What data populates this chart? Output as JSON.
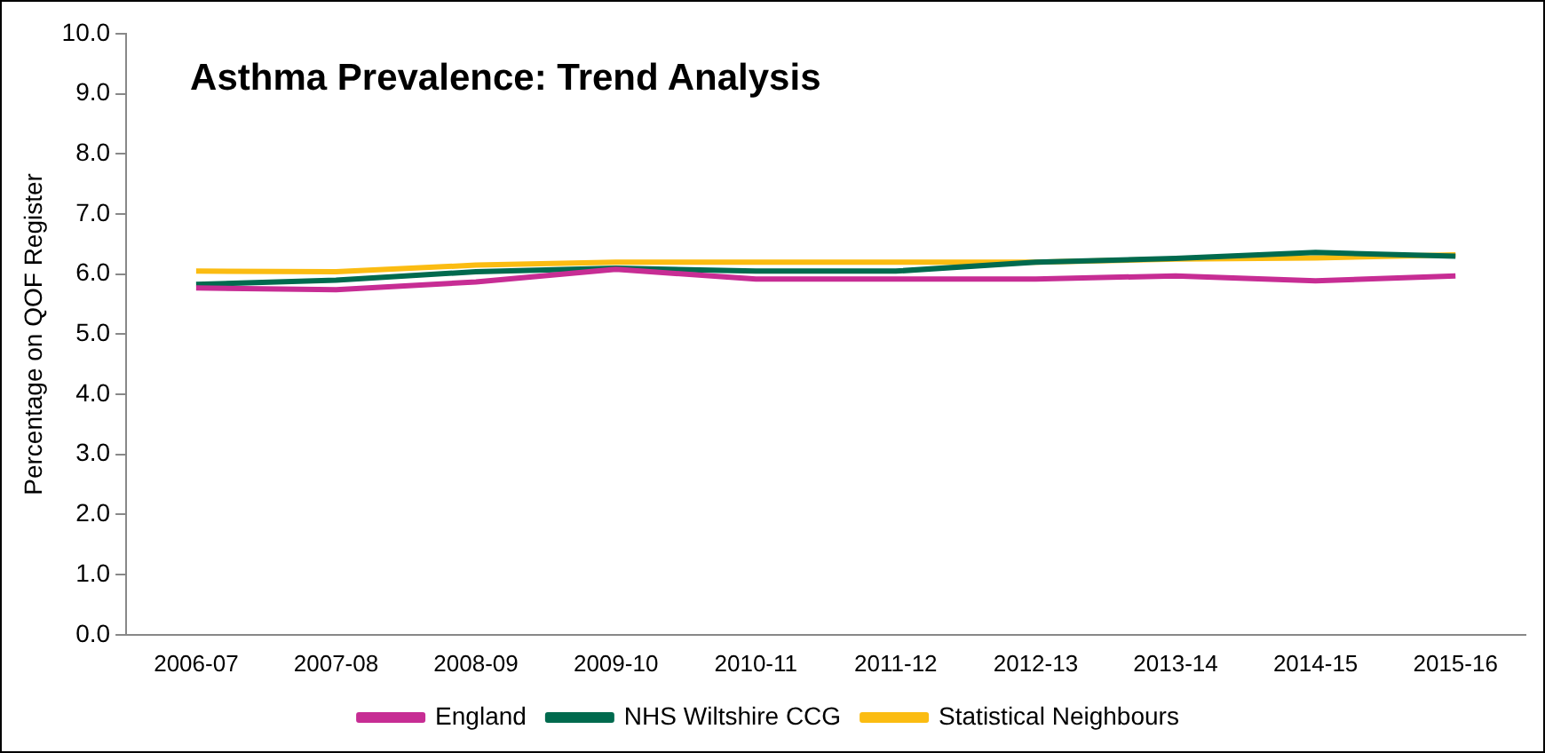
{
  "chart_data": {
    "type": "line",
    "title": "Asthma Prevalence: Trend Analysis",
    "ylabel": "Percentage on QOF Register",
    "categories": [
      "2006-07",
      "2007-08",
      "2008-09",
      "2009-10",
      "2010-11",
      "2011-12",
      "2012-13",
      "2013-14",
      "2014-15",
      "2015-16"
    ],
    "series": [
      {
        "name": "England",
        "color": "#c72d94",
        "values": [
          5.77,
          5.74,
          5.87,
          6.08,
          5.92,
          5.92,
          5.92,
          5.97,
          5.89,
          5.97
        ]
      },
      {
        "name": "NHS Wiltshire CCG",
        "color": "#006a4e",
        "values": [
          5.83,
          5.9,
          6.04,
          6.1,
          6.05,
          6.05,
          6.2,
          6.26,
          6.36,
          6.3
        ]
      },
      {
        "name": "Statistical Neighbours",
        "color": "#fbbc12",
        "values": [
          6.05,
          6.04,
          6.15,
          6.2,
          6.2,
          6.2,
          6.2,
          6.25,
          6.27,
          6.32
        ]
      }
    ],
    "ylim": [
      0,
      10
    ],
    "yticks": [
      {
        "value": 0,
        "label": "0.0"
      },
      {
        "value": 1,
        "label": "1.0"
      },
      {
        "value": 2,
        "label": "2.0"
      },
      {
        "value": 3,
        "label": "3.0"
      },
      {
        "value": 4,
        "label": "4.0"
      },
      {
        "value": 5,
        "label": "5.0"
      },
      {
        "value": 6,
        "label": "6.0"
      },
      {
        "value": 7,
        "label": "7.0"
      },
      {
        "value": 8,
        "label": "8.0"
      },
      {
        "value": 9,
        "label": "9.0"
      },
      {
        "value": 10,
        "label": "10.0"
      }
    ],
    "grid": false,
    "legend": "bottom",
    "marker": "none",
    "line_style": "solid"
  }
}
